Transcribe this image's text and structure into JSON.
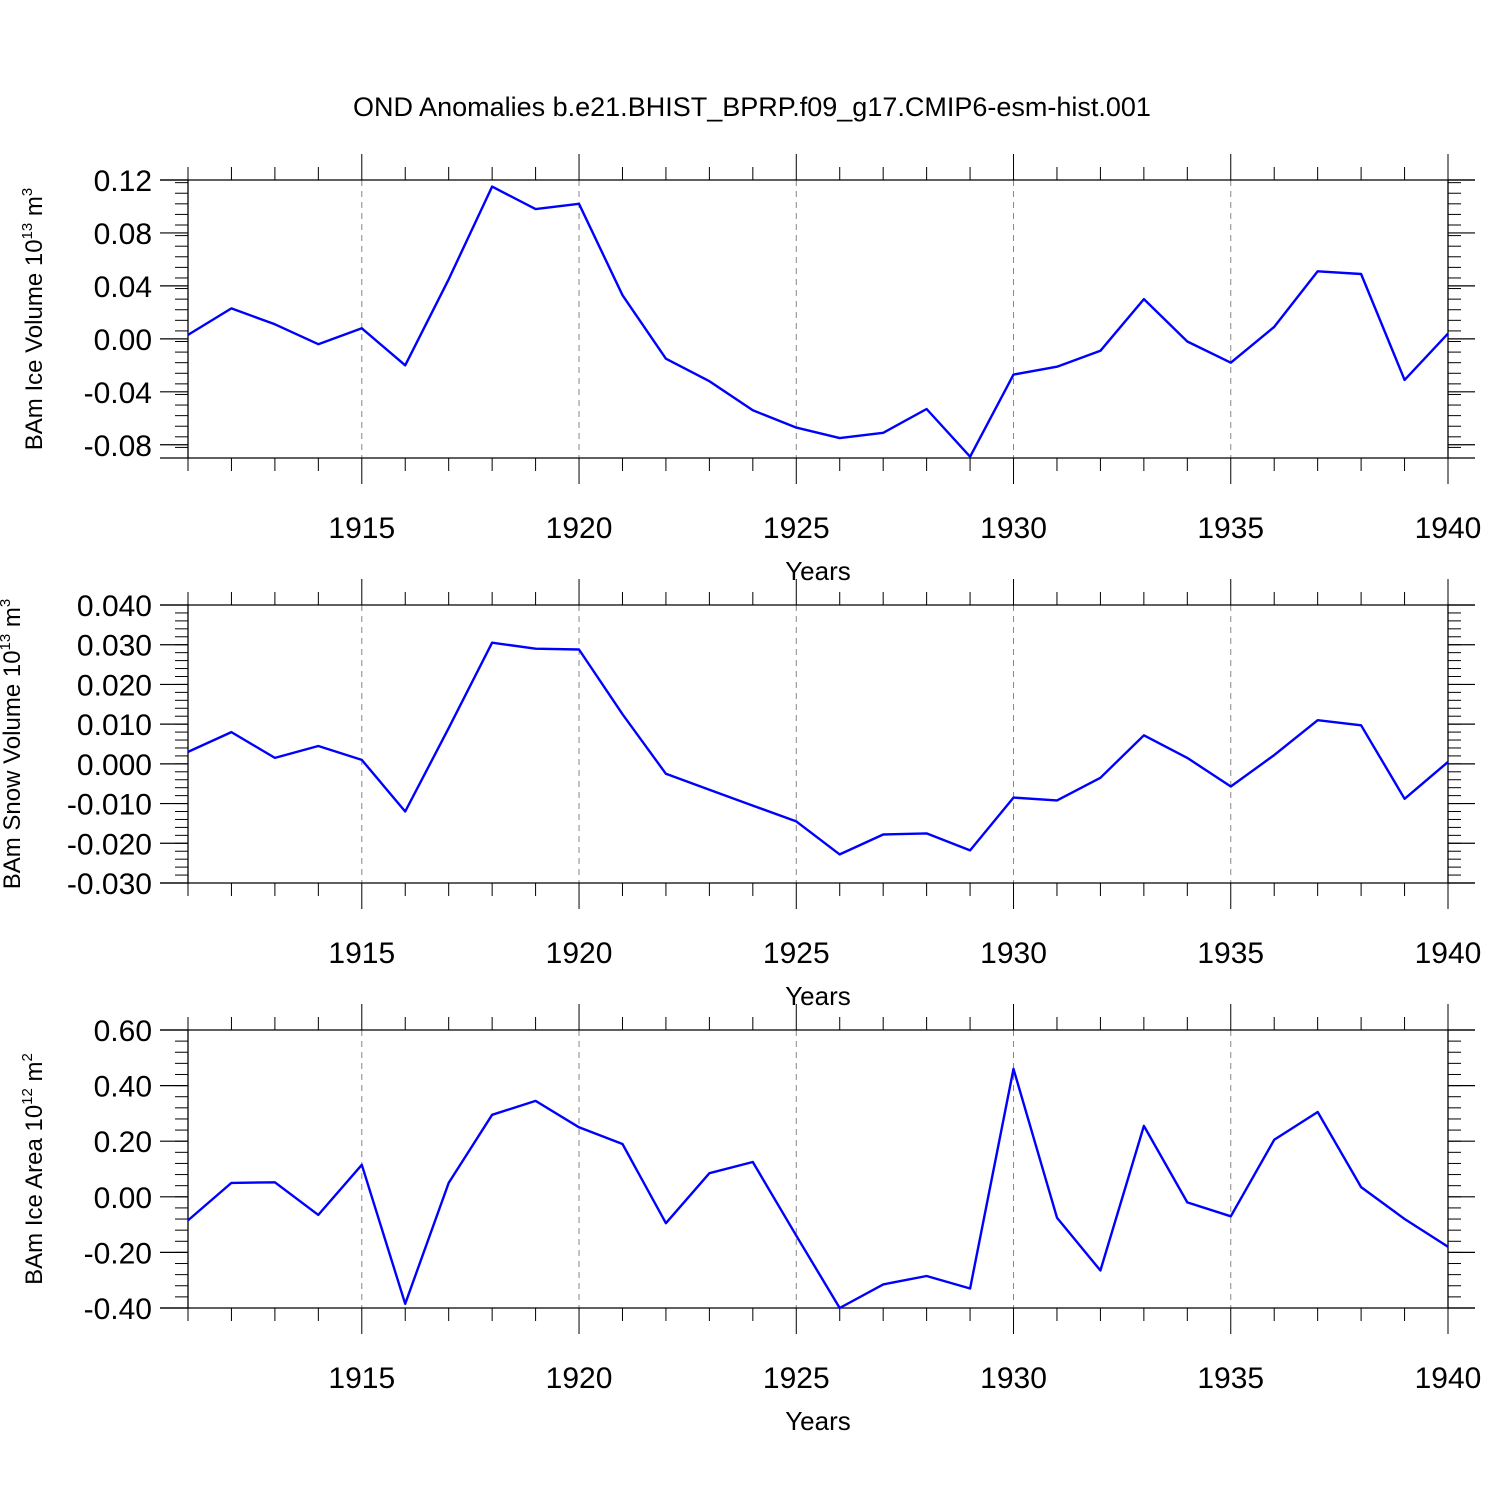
{
  "title": "OND Anomalies b.e21.BHIST_BPRP.f09_g17.CMIP6-esm-hist.001",
  "colors": {
    "line": "#0000ff",
    "frame": "#000000",
    "grid": "#888888"
  },
  "chart_data": [
    {
      "type": "line",
      "ylabel": {
        "main": "BAm Ice Volume 10",
        "exp": "13",
        "unit": " m",
        "unit_exp": "3"
      },
      "xlabel": "Years",
      "xlim": [
        1911,
        1940
      ],
      "ylim": [
        -0.09,
        0.12
      ],
      "yticks": [
        0.12,
        0.08,
        0.04,
        0.0,
        -0.04,
        -0.08
      ],
      "ytick_labels": [
        "0.12",
        "0.08",
        "0.04",
        "0.00",
        "-0.04",
        "-0.08"
      ],
      "ytick_minor_step": 0.008,
      "xticks": [
        1915,
        1920,
        1925,
        1930,
        1935,
        1940
      ],
      "xtick_labels": [
        "1915",
        "1920",
        "1925",
        "1930",
        "1935",
        "1940"
      ],
      "grid": "vertical dashed at major x ticks",
      "series": [
        {
          "x": [
            1911,
            1912,
            1913,
            1914,
            1915,
            1916,
            1917,
            1918,
            1919,
            1920,
            1921,
            1922,
            1923,
            1924,
            1925,
            1926,
            1927,
            1928,
            1929,
            1930,
            1931,
            1932,
            1933,
            1934,
            1935,
            1936,
            1937,
            1938,
            1939,
            1940
          ],
          "values": [
            0.003,
            0.023,
            0.011,
            -0.004,
            0.008,
            -0.02,
            0.045,
            0.115,
            0.098,
            0.102,
            0.033,
            -0.015,
            -0.032,
            -0.054,
            -0.067,
            -0.075,
            -0.071,
            -0.053,
            -0.089,
            -0.027,
            -0.021,
            -0.009,
            0.03,
            -0.002,
            -0.018,
            0.009,
            0.051,
            0.049,
            -0.031,
            0.004
          ]
        }
      ]
    },
    {
      "type": "line",
      "ylabel": {
        "main": "BAm Snow Volume 10",
        "exp": "13",
        "unit": " m",
        "unit_exp": "3"
      },
      "xlabel": "Years",
      "xlim": [
        1911,
        1940
      ],
      "ylim": [
        -0.03,
        0.04
      ],
      "yticks": [
        0.04,
        0.03,
        0.02,
        0.01,
        0.0,
        -0.01,
        -0.02,
        -0.03
      ],
      "ytick_labels": [
        "0.040",
        "0.030",
        "0.020",
        "0.010",
        "0.000",
        "-0.010",
        "-0.020",
        "-0.030"
      ],
      "ytick_minor_step": 0.002,
      "xticks": [
        1915,
        1920,
        1925,
        1930,
        1935,
        1940
      ],
      "xtick_labels": [
        "1915",
        "1920",
        "1925",
        "1930",
        "1935",
        "1940"
      ],
      "grid": "vertical dashed at major x ticks",
      "series": [
        {
          "x": [
            1911,
            1912,
            1913,
            1914,
            1915,
            1916,
            1917,
            1918,
            1919,
            1920,
            1921,
            1922,
            1923,
            1924,
            1925,
            1926,
            1927,
            1928,
            1929,
            1930,
            1931,
            1932,
            1933,
            1934,
            1935,
            1936,
            1937,
            1938,
            1939,
            1940
          ],
          "values": [
            0.003,
            0.008,
            0.0015,
            0.0045,
            0.001,
            -0.012,
            0.009,
            0.0305,
            0.029,
            0.0288,
            0.0125,
            -0.0025,
            -0.0065,
            -0.0105,
            -0.0145,
            -0.0228,
            -0.0178,
            -0.0175,
            -0.0218,
            -0.0085,
            -0.0092,
            -0.0035,
            0.0072,
            0.0015,
            -0.0057,
            0.0022,
            0.011,
            0.0097,
            -0.0088,
            0.0005
          ]
        }
      ]
    },
    {
      "type": "line",
      "ylabel": {
        "main": "BAm Ice Area 10",
        "exp": "12",
        "unit": " m",
        "unit_exp": "2"
      },
      "xlabel": "Years",
      "xlim": [
        1911,
        1940
      ],
      "ylim": [
        -0.4,
        0.6
      ],
      "yticks": [
        0.6,
        0.4,
        0.2,
        0.0,
        -0.2,
        -0.4
      ],
      "ytick_labels": [
        "0.60",
        "0.40",
        "0.20",
        "0.00",
        "-0.20",
        "-0.40"
      ],
      "ytick_minor_step": 0.04,
      "xticks": [
        1915,
        1920,
        1925,
        1930,
        1935,
        1940
      ],
      "xtick_labels": [
        "1915",
        "1920",
        "1925",
        "1930",
        "1935",
        "1940"
      ],
      "grid": "vertical dashed at major x ticks",
      "series": [
        {
          "x": [
            1911,
            1912,
            1913,
            1914,
            1915,
            1916,
            1917,
            1918,
            1919,
            1920,
            1921,
            1922,
            1923,
            1924,
            1925,
            1926,
            1927,
            1928,
            1929,
            1930,
            1931,
            1932,
            1933,
            1934,
            1935,
            1936,
            1937,
            1938,
            1939,
            1940
          ],
          "values": [
            -0.085,
            0.05,
            0.052,
            -0.065,
            0.115,
            -0.385,
            0.05,
            0.295,
            0.345,
            0.25,
            0.19,
            -0.095,
            0.085,
            0.125,
            -0.14,
            -0.4,
            -0.315,
            -0.285,
            -0.33,
            0.46,
            -0.075,
            -0.265,
            0.255,
            -0.02,
            -0.07,
            0.205,
            0.305,
            0.035,
            -0.08,
            -0.18
          ]
        }
      ]
    }
  ]
}
